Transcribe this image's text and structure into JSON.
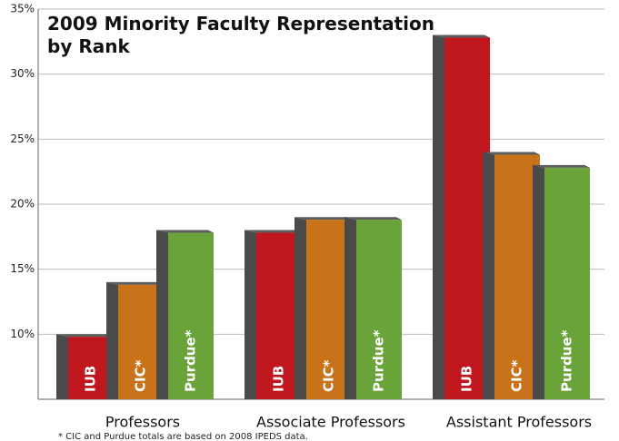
{
  "chart_data": {
    "type": "bar3d",
    "title": "2009 Minority Faculty Representation by Rank",
    "categories": [
      "Professors",
      "Associate Professors",
      "Assistant Professors"
    ],
    "series": [
      {
        "name": "IUB",
        "color": "#c0161e",
        "values": [
          9.8,
          17.8,
          32.8
        ]
      },
      {
        "name": "CIC*",
        "color": "#c8731a",
        "values": [
          13.8,
          18.8,
          23.8
        ]
      },
      {
        "name": "Purdue*",
        "color": "#6aa339",
        "values": [
          17.8,
          18.8,
          22.8
        ]
      }
    ],
    "ylim": [
      5,
      35
    ],
    "yticks": [
      {
        "value": 10,
        "label": "10%"
      },
      {
        "value": 15,
        "label": "15%"
      },
      {
        "value": 20,
        "label": "20%"
      },
      {
        "value": 25,
        "label": "25%"
      },
      {
        "value": 30,
        "label": "30%"
      },
      {
        "value": 35,
        "label": "35%"
      }
    ],
    "grid": true,
    "footnote": "* CIC and Purdue totals are based on 2008 IPEDS data."
  }
}
